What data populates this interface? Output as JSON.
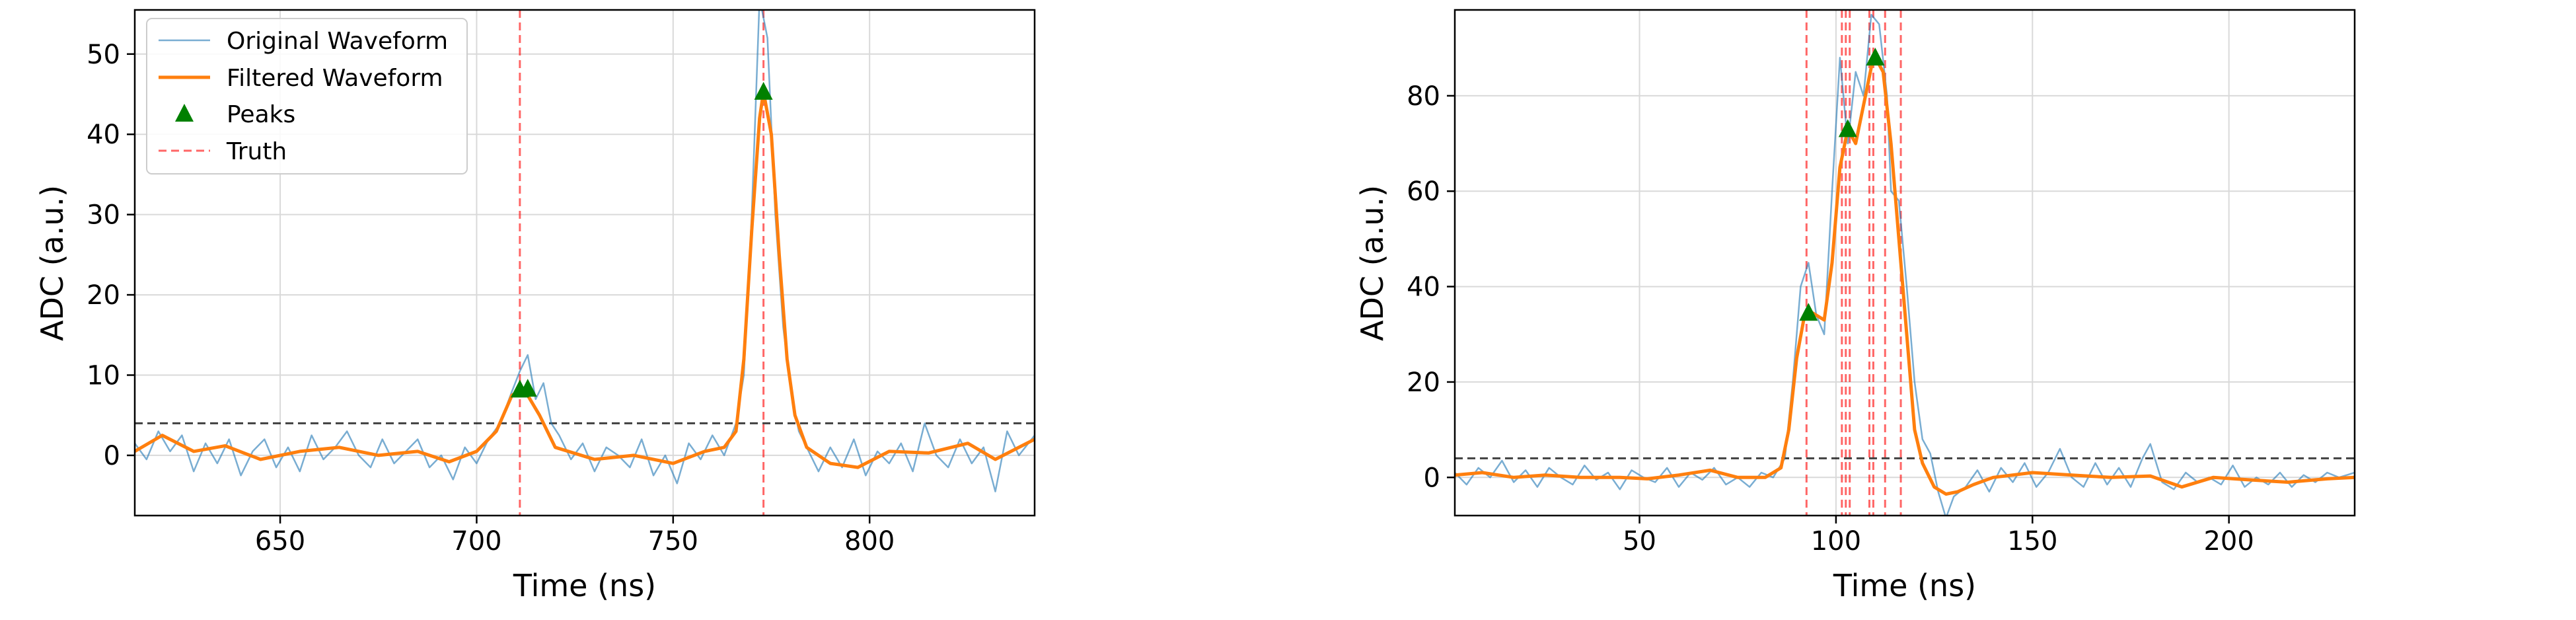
{
  "colors": {
    "original": "#1f77b4",
    "filtered": "#ff7f0e",
    "peaks": "#008000",
    "truth": "#ff0000",
    "threshold": "#000000",
    "grid": "#d9d9d9"
  },
  "chart_data": [
    {
      "type": "line",
      "xlabel": "Time (ns)",
      "ylabel": "ADC (a.u.)",
      "xlim": [
        613,
        842
      ],
      "ylim": [
        -7.5,
        55.5
      ],
      "xticks": [
        650,
        700,
        750,
        800
      ],
      "yticks": [
        0,
        10,
        20,
        30,
        40,
        50
      ],
      "grid": true,
      "legend": {
        "placement": "top-left",
        "entries": [
          {
            "label": "Original Waveform",
            "kind": "line",
            "series": "original"
          },
          {
            "label": "Filtered Waveform",
            "kind": "line",
            "series": "filtered"
          },
          {
            "label": "Peaks",
            "kind": "marker",
            "series": "peaks"
          },
          {
            "label": "Truth",
            "kind": "dashed",
            "series": "truth"
          }
        ]
      },
      "threshold": 4,
      "truth_lines": [
        711,
        773
      ],
      "peaks": [
        {
          "x": 711,
          "y": 8.2
        },
        {
          "x": 713,
          "y": 8.3
        },
        {
          "x": 773,
          "y": 45.3
        }
      ],
      "series": [
        {
          "name": "Original Waveform",
          "key": "original",
          "points": [
            [
              613,
              1.5
            ],
            [
              616,
              -0.5
            ],
            [
              619,
              3
            ],
            [
              622,
              0.5
            ],
            [
              625,
              2.5
            ],
            [
              628,
              -2
            ],
            [
              631,
              1.5
            ],
            [
              634,
              -1
            ],
            [
              637,
              2
            ],
            [
              640,
              -2.5
            ],
            [
              643,
              0.5
            ],
            [
              646,
              2
            ],
            [
              649,
              -1.5
            ],
            [
              652,
              1
            ],
            [
              655,
              -2
            ],
            [
              658,
              2.5
            ],
            [
              661,
              -0.5
            ],
            [
              664,
              1
            ],
            [
              667,
              3
            ],
            [
              670,
              0
            ],
            [
              673,
              -1.5
            ],
            [
              676,
              2
            ],
            [
              679,
              -1
            ],
            [
              682,
              0.5
            ],
            [
              685,
              2
            ],
            [
              688,
              -1.5
            ],
            [
              691,
              0
            ],
            [
              694,
              -3
            ],
            [
              697,
              1
            ],
            [
              700,
              -1
            ],
            [
              703,
              2
            ],
            [
              706,
              4
            ],
            [
              709,
              8
            ],
            [
              711,
              10.5
            ],
            [
              713,
              12.5
            ],
            [
              715,
              7
            ],
            [
              717,
              9
            ],
            [
              719,
              4
            ],
            [
              721,
              2.5
            ],
            [
              724,
              -0.5
            ],
            [
              727,
              1.5
            ],
            [
              730,
              -2
            ],
            [
              733,
              1
            ],
            [
              736,
              0
            ],
            [
              739,
              -1.5
            ],
            [
              742,
              2
            ],
            [
              745,
              -2.5
            ],
            [
              748,
              0
            ],
            [
              751,
              -3.5
            ],
            [
              754,
              1.5
            ],
            [
              757,
              -0.5
            ],
            [
              760,
              2.5
            ],
            [
              763,
              0
            ],
            [
              766,
              4
            ],
            [
              768,
              10
            ],
            [
              770,
              30
            ],
            [
              772,
              57
            ],
            [
              774,
              52
            ],
            [
              776,
              30
            ],
            [
              778,
              16
            ],
            [
              780,
              8
            ],
            [
              782,
              3
            ],
            [
              784,
              1
            ],
            [
              787,
              -2
            ],
            [
              790,
              1
            ],
            [
              793,
              -1.5
            ],
            [
              796,
              2
            ],
            [
              799,
              -2.5
            ],
            [
              802,
              0.5
            ],
            [
              805,
              -1
            ],
            [
              808,
              1.5
            ],
            [
              811,
              -2
            ],
            [
              814,
              4
            ],
            [
              817,
              0
            ],
            [
              820,
              -1.5
            ],
            [
              823,
              2
            ],
            [
              826,
              -1
            ],
            [
              829,
              1
            ],
            [
              832,
              -4.5
            ],
            [
              835,
              3
            ],
            [
              838,
              0
            ],
            [
              842,
              2.5
            ]
          ]
        },
        {
          "name": "Filtered Waveform",
          "key": "filtered",
          "points": [
            [
              613,
              0.5
            ],
            [
              620,
              2.5
            ],
            [
              628,
              0.5
            ],
            [
              636,
              1.2
            ],
            [
              645,
              -0.5
            ],
            [
              655,
              0.5
            ],
            [
              665,
              1
            ],
            [
              675,
              0
            ],
            [
              685,
              0.5
            ],
            [
              693,
              -0.8
            ],
            [
              700,
              0.5
            ],
            [
              705,
              3
            ],
            [
              709,
              7.5
            ],
            [
              712,
              8.3
            ],
            [
              716,
              5
            ],
            [
              720,
              1
            ],
            [
              730,
              -0.5
            ],
            [
              740,
              0
            ],
            [
              750,
              -1
            ],
            [
              758,
              0.5
            ],
            [
              763,
              1
            ],
            [
              766,
              3
            ],
            [
              768,
              12
            ],
            [
              770,
              28
            ],
            [
              772,
              42
            ],
            [
              773,
              45.3
            ],
            [
              775,
              40
            ],
            [
              777,
              25
            ],
            [
              779,
              12
            ],
            [
              781,
              5
            ],
            [
              784,
              1
            ],
            [
              790,
              -1
            ],
            [
              797,
              -1.5
            ],
            [
              805,
              0.5
            ],
            [
              815,
              0.3
            ],
            [
              825,
              1.5
            ],
            [
              832,
              -0.5
            ],
            [
              842,
              2
            ]
          ]
        }
      ]
    },
    {
      "type": "line",
      "xlabel": "Time (ns)",
      "ylabel": "ADC (a.u.)",
      "xlim": [
        3,
        232
      ],
      "ylim": [
        -8,
        98
      ],
      "xticks": [
        50,
        100,
        150,
        200
      ],
      "yticks": [
        0,
        20,
        40,
        60,
        80
      ],
      "grid": true,
      "threshold": 4,
      "truth_lines": [
        92.5,
        101.5,
        102.5,
        103.5,
        108.5,
        109.5,
        112.5,
        116.5
      ],
      "peaks": [
        {
          "x": 93,
          "y": 34.5
        },
        {
          "x": 103,
          "y": 73
        },
        {
          "x": 110,
          "y": 88
        }
      ],
      "series": [
        {
          "name": "Original Waveform",
          "key": "original",
          "points": [
            [
              3,
              1
            ],
            [
              6,
              -1.5
            ],
            [
              9,
              2
            ],
            [
              12,
              0
            ],
            [
              15,
              3.5
            ],
            [
              18,
              -1
            ],
            [
              21,
              1.5
            ],
            [
              24,
              -2
            ],
            [
              27,
              2
            ],
            [
              30,
              0
            ],
            [
              33,
              -1.5
            ],
            [
              36,
              2.5
            ],
            [
              39,
              -0.5
            ],
            [
              42,
              1
            ],
            [
              45,
              -2.5
            ],
            [
              48,
              1.5
            ],
            [
              51,
              0
            ],
            [
              54,
              -1
            ],
            [
              57,
              2
            ],
            [
              60,
              -2
            ],
            [
              63,
              1
            ],
            [
              66,
              -0.5
            ],
            [
              69,
              2
            ],
            [
              72,
              -1.5
            ],
            [
              75,
              0
            ],
            [
              78,
              -2
            ],
            [
              81,
              1
            ],
            [
              84,
              0
            ],
            [
              87,
              4
            ],
            [
              89,
              20
            ],
            [
              91,
              40
            ],
            [
              93,
              45
            ],
            [
              95,
              34
            ],
            [
              97,
              30
            ],
            [
              99,
              60
            ],
            [
              101,
              88
            ],
            [
              103,
              70
            ],
            [
              105,
              85
            ],
            [
              107,
              80
            ],
            [
              109,
              97
            ],
            [
              111,
              95
            ],
            [
              113,
              80
            ],
            [
              114,
              60
            ],
            [
              116,
              58
            ],
            [
              118,
              40
            ],
            [
              120,
              20
            ],
            [
              122,
              8
            ],
            [
              124,
              5
            ],
            [
              126,
              -3
            ],
            [
              128,
              -8.5
            ],
            [
              130,
              -4
            ],
            [
              133,
              -2
            ],
            [
              136,
              1.5
            ],
            [
              139,
              -3
            ],
            [
              142,
              2
            ],
            [
              145,
              -1
            ],
            [
              148,
              3
            ],
            [
              151,
              -2
            ],
            [
              154,
              1
            ],
            [
              157,
              6
            ],
            [
              160,
              0
            ],
            [
              163,
              -2
            ],
            [
              166,
              3
            ],
            [
              169,
              -1.5
            ],
            [
              172,
              2
            ],
            [
              175,
              -2
            ],
            [
              178,
              4
            ],
            [
              180,
              7
            ],
            [
              183,
              -1
            ],
            [
              186,
              -2.5
            ],
            [
              189,
              1
            ],
            [
              192,
              -1
            ],
            [
              195,
              0
            ],
            [
              198,
              -1.5
            ],
            [
              201,
              2.5
            ],
            [
              204,
              -2
            ],
            [
              207,
              0
            ],
            [
              210,
              -1.5
            ],
            [
              213,
              1
            ],
            [
              216,
              -2
            ],
            [
              219,
              0.5
            ],
            [
              222,
              -1
            ],
            [
              225,
              1
            ],
            [
              228,
              0
            ],
            [
              232,
              1
            ]
          ]
        },
        {
          "name": "Filtered Waveform",
          "key": "filtered",
          "points": [
            [
              3,
              0.5
            ],
            [
              10,
              1
            ],
            [
              18,
              0
            ],
            [
              26,
              0.5
            ],
            [
              35,
              0
            ],
            [
              45,
              0
            ],
            [
              52,
              -0.3
            ],
            [
              60,
              0.5
            ],
            [
              68,
              1.5
            ],
            [
              75,
              0
            ],
            [
              82,
              0
            ],
            [
              86,
              2
            ],
            [
              88,
              10
            ],
            [
              90,
              25
            ],
            [
              92,
              34
            ],
            [
              94,
              34.5
            ],
            [
              97,
              33
            ],
            [
              99,
              45
            ],
            [
              101,
              65
            ],
            [
              103,
              73
            ],
            [
              105,
              70
            ],
            [
              107,
              78
            ],
            [
              109,
              86
            ],
            [
              110,
              88
            ],
            [
              112,
              85
            ],
            [
              114,
              70
            ],
            [
              116,
              50
            ],
            [
              118,
              30
            ],
            [
              120,
              10
            ],
            [
              122,
              3
            ],
            [
              125,
              -2
            ],
            [
              128,
              -3.5
            ],
            [
              131,
              -3
            ],
            [
              135,
              -1.5
            ],
            [
              140,
              0
            ],
            [
              150,
              1
            ],
            [
              160,
              0.5
            ],
            [
              170,
              0
            ],
            [
              180,
              0.3
            ],
            [
              188,
              -2
            ],
            [
              196,
              0
            ],
            [
              205,
              -0.5
            ],
            [
              215,
              -1
            ],
            [
              225,
              -0.3
            ],
            [
              232,
              0
            ]
          ]
        }
      ]
    }
  ]
}
